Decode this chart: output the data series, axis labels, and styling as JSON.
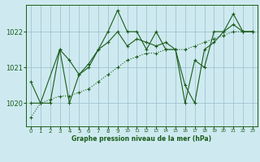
{
  "title": "Graphe pression niveau de la mer (hPa)",
  "background_color": "#ceeaf0",
  "grid_color": "#99bbcc",
  "line_color": "#1a5c1a",
  "xlim": [
    -0.5,
    23.5
  ],
  "ylim": [
    1019.35,
    1022.75
  ],
  "yticks": [
    1020,
    1021,
    1022
  ],
  "xticks": [
    0,
    1,
    2,
    3,
    4,
    5,
    6,
    7,
    8,
    9,
    10,
    11,
    12,
    13,
    14,
    15,
    16,
    17,
    18,
    19,
    20,
    21,
    22,
    23
  ],
  "series1_x": [
    0,
    1,
    2,
    3,
    4,
    5,
    6,
    7,
    8,
    9,
    10,
    11,
    12,
    13,
    14,
    15,
    16,
    17,
    18,
    19,
    20,
    21,
    22,
    23
  ],
  "series1_y": [
    1020.6,
    1020.0,
    1020.0,
    1021.5,
    1020.0,
    1020.8,
    1021.1,
    1021.5,
    1022.0,
    1022.6,
    1022.0,
    1022.0,
    1021.5,
    1022.0,
    1021.5,
    1021.5,
    1020.0,
    1021.2,
    1021.0,
    1022.0,
    1022.0,
    1022.5,
    1022.0,
    1022.0
  ],
  "series2_x": [
    0,
    1,
    3,
    4,
    5,
    6,
    7,
    8,
    9,
    10,
    11,
    12,
    13,
    14,
    15,
    16,
    17,
    18,
    19,
    20,
    21,
    22,
    23
  ],
  "series2_y": [
    1020.0,
    1020.0,
    1021.5,
    1021.2,
    1020.8,
    1021.0,
    1021.5,
    1021.7,
    1022.0,
    1021.6,
    1021.8,
    1021.7,
    1021.6,
    1021.7,
    1021.5,
    1020.5,
    1020.0,
    1021.5,
    1021.7,
    1022.0,
    1022.2,
    1022.0,
    1022.0
  ],
  "series3_x": [
    0,
    1,
    2,
    3,
    4,
    5,
    6,
    7,
    8,
    9,
    10,
    11,
    12,
    13,
    14,
    15,
    16,
    17,
    18,
    19,
    20,
    21,
    22,
    23
  ],
  "series3_y": [
    1019.6,
    1020.0,
    1020.1,
    1020.2,
    1020.2,
    1020.3,
    1020.4,
    1020.6,
    1020.8,
    1021.0,
    1021.2,
    1021.3,
    1021.4,
    1021.4,
    1021.5,
    1021.5,
    1021.5,
    1021.6,
    1021.7,
    1021.8,
    1021.9,
    1022.0,
    1022.0,
    1022.0
  ]
}
